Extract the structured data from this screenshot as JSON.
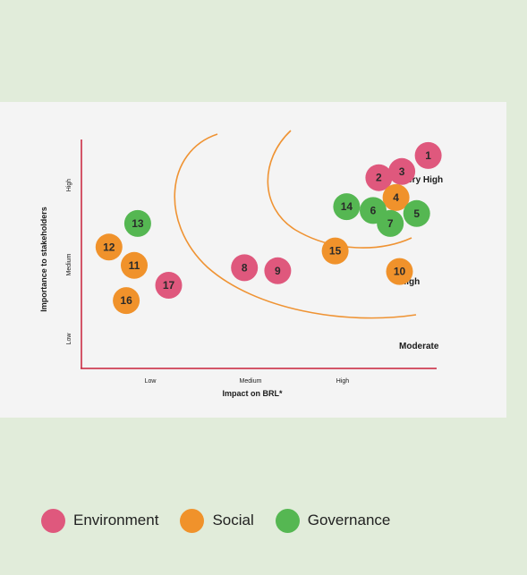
{
  "chart_data": {
    "type": "scatter",
    "title": "",
    "xlabel": "Impact on BRL*",
    "ylabel": "Importance to stakeholders",
    "x_ticks": [
      "Low",
      "Medium",
      "High"
    ],
    "y_ticks": [
      "Low",
      "Medium",
      "High"
    ],
    "xlim": [
      0,
      3
    ],
    "ylim": [
      0,
      3
    ],
    "zones": [
      "Very High",
      "High",
      "Moderate"
    ],
    "grid": false,
    "legend_position": "bottom-left",
    "categories": [
      {
        "key": "environment",
        "name": "Environment",
        "color": "#df587d"
      },
      {
        "key": "social",
        "name": "Social",
        "color": "#f0922b"
      },
      {
        "key": "governance",
        "name": "Governance",
        "color": "#55b752"
      }
    ],
    "points": [
      {
        "label": "1",
        "category": "environment",
        "x": 3.02,
        "y": 2.79
      },
      {
        "label": "2",
        "category": "environment",
        "x": 2.59,
        "y": 2.5
      },
      {
        "label": "3",
        "category": "environment",
        "x": 2.79,
        "y": 2.58
      },
      {
        "label": "4",
        "category": "social",
        "x": 2.74,
        "y": 2.24
      },
      {
        "label": "5",
        "category": "governance",
        "x": 2.92,
        "y": 2.03
      },
      {
        "label": "6",
        "category": "governance",
        "x": 2.54,
        "y": 2.07
      },
      {
        "label": "7",
        "category": "governance",
        "x": 2.69,
        "y": 1.9
      },
      {
        "label": "8",
        "category": "environment",
        "x": 1.42,
        "y": 1.32
      },
      {
        "label": "9",
        "category": "environment",
        "x": 1.71,
        "y": 1.28
      },
      {
        "label": "10",
        "category": "social",
        "x": 2.77,
        "y": 1.27
      },
      {
        "label": "11",
        "category": "social",
        "x": 0.46,
        "y": 1.35
      },
      {
        "label": "12",
        "category": "social",
        "x": 0.24,
        "y": 1.59
      },
      {
        "label": "13",
        "category": "governance",
        "x": 0.49,
        "y": 1.9
      },
      {
        "label": "14",
        "category": "governance",
        "x": 2.31,
        "y": 2.12
      },
      {
        "label": "15",
        "category": "social",
        "x": 2.21,
        "y": 1.54
      },
      {
        "label": "16",
        "category": "social",
        "x": 0.39,
        "y": 0.89
      },
      {
        "label": "17",
        "category": "environment",
        "x": 0.76,
        "y": 1.09
      }
    ]
  }
}
